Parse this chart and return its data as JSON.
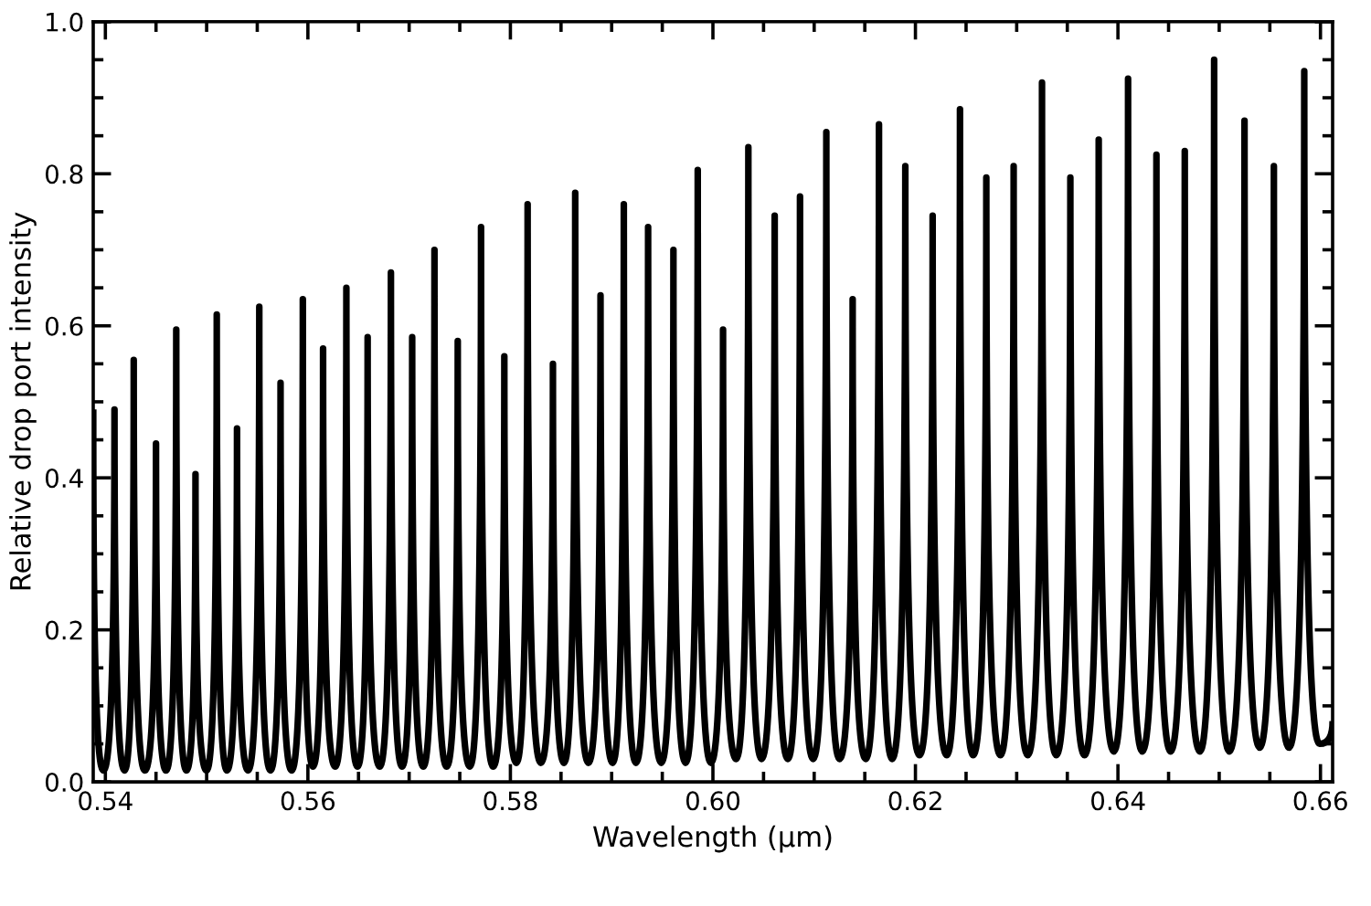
{
  "chart_data": {
    "type": "line",
    "xlabel": "Wavelength (μm)",
    "ylabel": "Relative drop port intensity",
    "xlim": [
      0.5388,
      0.6612
    ],
    "ylim": [
      0,
      1.0
    ],
    "xticks": [
      {
        "value": 0.54,
        "label": "0.54"
      },
      {
        "value": 0.545,
        "label": null
      },
      {
        "value": 0.55,
        "label": null
      },
      {
        "value": 0.555,
        "label": null
      },
      {
        "value": 0.56,
        "label": "0.56"
      },
      {
        "value": 0.565,
        "label": null
      },
      {
        "value": 0.57,
        "label": null
      },
      {
        "value": 0.575,
        "label": null
      },
      {
        "value": 0.58,
        "label": "0.58"
      },
      {
        "value": 0.585,
        "label": null
      },
      {
        "value": 0.59,
        "label": null
      },
      {
        "value": 0.595,
        "label": null
      },
      {
        "value": 0.6,
        "label": "0.60"
      },
      {
        "value": 0.605,
        "label": null
      },
      {
        "value": 0.61,
        "label": null
      },
      {
        "value": 0.615,
        "label": null
      },
      {
        "value": 0.62,
        "label": "0.62"
      },
      {
        "value": 0.625,
        "label": null
      },
      {
        "value": 0.63,
        "label": null
      },
      {
        "value": 0.635,
        "label": null
      },
      {
        "value": 0.64,
        "label": "0.64"
      },
      {
        "value": 0.645,
        "label": null
      },
      {
        "value": 0.65,
        "label": null
      },
      {
        "value": 0.655,
        "label": null
      },
      {
        "value": 0.66,
        "label": "0.66"
      }
    ],
    "yticks": [
      {
        "value": 0,
        "label": "0.0"
      },
      {
        "value": 0.05,
        "label": null
      },
      {
        "value": 0.1,
        "label": null
      },
      {
        "value": 0.15,
        "label": null
      },
      {
        "value": 0.2,
        "label": "0.2"
      },
      {
        "value": 0.25,
        "label": null
      },
      {
        "value": 0.3,
        "label": null
      },
      {
        "value": 0.35,
        "label": null
      },
      {
        "value": 0.4,
        "label": "0.4"
      },
      {
        "value": 0.45,
        "label": null
      },
      {
        "value": 0.5,
        "label": null
      },
      {
        "value": 0.55,
        "label": null
      },
      {
        "value": 0.6,
        "label": "0.6"
      },
      {
        "value": 0.65,
        "label": null
      },
      {
        "value": 0.7,
        "label": null
      },
      {
        "value": 0.75,
        "label": null
      },
      {
        "value": 0.8,
        "label": "0.8"
      },
      {
        "value": 0.85,
        "label": null
      },
      {
        "value": 0.9,
        "label": null
      },
      {
        "value": 0.95,
        "label": null
      },
      {
        "value": 1.0,
        "label": "1.0"
      }
    ],
    "grid": false,
    "marker": "none",
    "line_style": "solid",
    "series": [
      {
        "color": "#000000",
        "x": [
          0.5388,
          0.5398,
          0.5409,
          0.5419,
          0.5428,
          0.5439,
          0.545,
          0.546,
          0.547,
          0.548,
          0.5489,
          0.55,
          0.551,
          0.552,
          0.553,
          0.5541,
          0.5552,
          0.5563,
          0.5573,
          0.5584,
          0.5595,
          0.5605,
          0.5615,
          0.5627,
          0.5638,
          0.5649,
          0.5659,
          0.5671,
          0.5682,
          0.5693,
          0.5703,
          0.5714,
          0.5725,
          0.5737,
          0.5748,
          0.576,
          0.5771,
          0.5783,
          0.5794,
          0.5806,
          0.5817,
          0.583,
          0.5842,
          0.5853,
          0.5864,
          0.5877,
          0.5889,
          0.5901,
          0.5912,
          0.5924,
          0.5936,
          0.5949,
          0.5961,
          0.5973,
          0.5985,
          0.5998,
          0.601,
          0.6023,
          0.6035,
          0.6048,
          0.6061,
          0.6074,
          0.6086,
          0.6099,
          0.6112,
          0.6125,
          0.6138,
          0.6151,
          0.6164,
          0.6177,
          0.619,
          0.6204,
          0.6217,
          0.6231,
          0.6244,
          0.6257,
          0.627,
          0.6284,
          0.6297,
          0.6311,
          0.6325,
          0.6339,
          0.6353,
          0.6367,
          0.6381,
          0.6396,
          0.641,
          0.6424,
          0.6438,
          0.6452,
          0.6466,
          0.6481,
          0.6495,
          0.651,
          0.6525,
          0.654,
          0.6554,
          0.6569,
          0.6584,
          0.6599,
          0.6612
        ],
        "values": [
          0.49,
          0.015,
          0.49,
          0.015,
          0.555,
          0.015,
          0.445,
          0.015,
          0.595,
          0.015,
          0.405,
          0.015,
          0.615,
          0.015,
          0.465,
          0.015,
          0.625,
          0.015,
          0.525,
          0.015,
          0.635,
          0.02,
          0.57,
          0.02,
          0.65,
          0.02,
          0.585,
          0.02,
          0.67,
          0.02,
          0.585,
          0.02,
          0.7,
          0.02,
          0.58,
          0.02,
          0.73,
          0.02,
          0.56,
          0.025,
          0.76,
          0.025,
          0.55,
          0.025,
          0.775,
          0.025,
          0.64,
          0.025,
          0.76,
          0.025,
          0.73,
          0.025,
          0.7,
          0.025,
          0.805,
          0.025,
          0.595,
          0.03,
          0.835,
          0.03,
          0.745,
          0.03,
          0.77,
          0.03,
          0.855,
          0.03,
          0.635,
          0.03,
          0.865,
          0.03,
          0.81,
          0.035,
          0.745,
          0.035,
          0.885,
          0.035,
          0.795,
          0.035,
          0.81,
          0.035,
          0.92,
          0.035,
          0.795,
          0.035,
          0.845,
          0.04,
          0.925,
          0.04,
          0.825,
          0.04,
          0.83,
          0.04,
          0.95,
          0.04,
          0.87,
          0.045,
          0.81,
          0.045,
          0.935,
          0.05,
          0.08
        ]
      }
    ]
  }
}
